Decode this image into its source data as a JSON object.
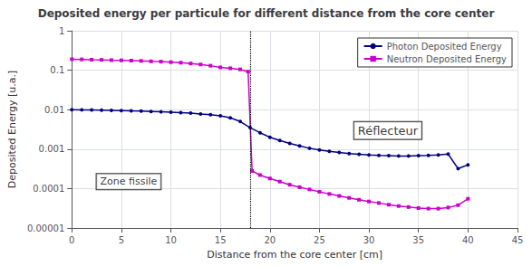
{
  "chart_data": {
    "type": "line",
    "title": "Deposited energy per particule for different distance from the core center",
    "xlabel": "Distance from the core center [cm]",
    "ylabel": "Deposited Energy [u.a.]",
    "log": "y",
    "grid": true,
    "legend": "upper right",
    "xlim": [
      0,
      45
    ],
    "xticks": [
      0,
      5,
      10,
      15,
      20,
      25,
      30,
      35,
      40,
      45
    ],
    "ylim": [
      1e-05,
      1
    ],
    "yticks": [
      {
        "value": 1e-05,
        "label": "0.00001"
      },
      0.0001,
      0.001,
      0.01,
      0.1,
      1
    ],
    "series": [
      {
        "name": "Photon Deposited Energy",
        "color": "#000080",
        "marker": "circle",
        "x": [
          0,
          1,
          2,
          3,
          4,
          5,
          6,
          7,
          8,
          9,
          10,
          11,
          12,
          13,
          14,
          15,
          16,
          17,
          18,
          19,
          20,
          21,
          22,
          23,
          24,
          25,
          26,
          27,
          28,
          29,
          30,
          31,
          32,
          33,
          34,
          35,
          36,
          37,
          38,
          39,
          40
        ],
        "values": [
          0.01,
          0.0099,
          0.0098,
          0.0097,
          0.0096,
          0.0095,
          0.0093,
          0.0092,
          0.009,
          0.0088,
          0.0086,
          0.0084,
          0.0082,
          0.0078,
          0.0075,
          0.007,
          0.0062,
          0.005,
          0.0035,
          0.0026,
          0.002,
          0.00165,
          0.0014,
          0.0012,
          0.00105,
          0.00095,
          0.00088,
          0.00082,
          0.00077,
          0.00074,
          0.00071,
          0.00069,
          0.00068,
          0.00067,
          0.00067,
          0.00068,
          0.00069,
          0.00071,
          0.00075,
          0.00032,
          0.0004
        ]
      },
      {
        "name": "Neutron Deposited Energy",
        "color": "#CC00CC",
        "marker": "square",
        "x": [
          0,
          1,
          2,
          3,
          4,
          5,
          6,
          7,
          8,
          9,
          10,
          11,
          12,
          13,
          14,
          15,
          16,
          17,
          17.8,
          18.2,
          19,
          20,
          21,
          22,
          23,
          24,
          25,
          26,
          27,
          28,
          29,
          30,
          31,
          32,
          33,
          34,
          35,
          36,
          37,
          38,
          39,
          40
        ],
        "values": [
          0.19,
          0.188,
          0.185,
          0.183,
          0.18,
          0.178,
          0.175,
          0.172,
          0.168,
          0.165,
          0.16,
          0.155,
          0.148,
          0.14,
          0.13,
          0.118,
          0.112,
          0.105,
          0.092,
          0.00028,
          0.00022,
          0.00018,
          0.00015,
          0.000125,
          0.000108,
          9.5e-05,
          8.3e-05,
          7.3e-05,
          6.5e-05,
          5.8e-05,
          5.2e-05,
          4.7e-05,
          4.3e-05,
          3.9e-05,
          3.6e-05,
          3.4e-05,
          3.2e-05,
          3.1e-05,
          3.1e-05,
          3.3e-05,
          3.8e-05,
          5.5e-05
        ]
      }
    ],
    "vlines": [
      {
        "x": 18,
        "color": "#000000",
        "line_style": "dotted"
      }
    ],
    "annotations": [
      {
        "text": "Zone fissile",
        "x": 2.5,
        "y": 9.5e-05
      },
      {
        "text": "Réflecteur",
        "x": 28.5,
        "y": 0.0018
      }
    ]
  }
}
